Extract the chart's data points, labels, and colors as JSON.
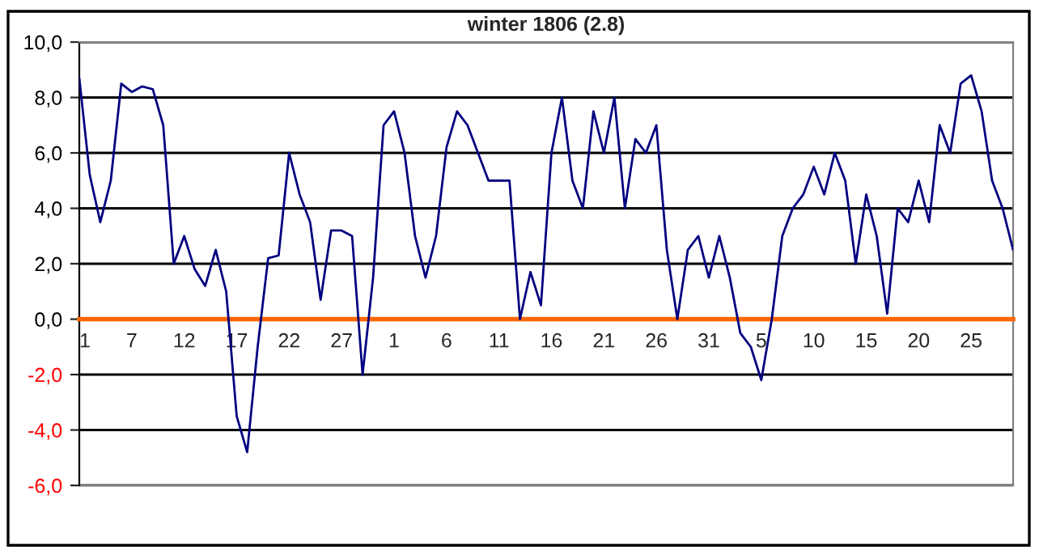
{
  "chart_data": {
    "type": "line",
    "title": "winter 1806 (2.8)",
    "categories": [
      "1",
      null,
      null,
      null,
      null,
      "7",
      null,
      null,
      null,
      null,
      "12",
      null,
      null,
      null,
      null,
      "17",
      null,
      null,
      null,
      null,
      "22",
      null,
      null,
      null,
      null,
      "27",
      null,
      null,
      null,
      null,
      "1",
      null,
      null,
      null,
      null,
      "6",
      null,
      null,
      null,
      null,
      "11",
      null,
      null,
      null,
      null,
      "16",
      null,
      null,
      null,
      null,
      "21",
      null,
      null,
      null,
      null,
      "26",
      null,
      null,
      null,
      null,
      "31",
      null,
      null,
      null,
      null,
      "5",
      null,
      null,
      null,
      null,
      "10",
      null,
      null,
      null,
      null,
      "15",
      null,
      null,
      null,
      null,
      "20",
      null,
      null,
      null,
      null,
      "25",
      null,
      null,
      null,
      null
    ],
    "series": [
      {
        "color": "#000080",
        "values": [
          8.7,
          5.2,
          3.5,
          5.0,
          8.5,
          8.2,
          8.4,
          8.3,
          7.0,
          2.0,
          3.0,
          1.8,
          1.2,
          2.5,
          1.0,
          -3.5,
          -4.8,
          -1.0,
          2.2,
          2.3,
          6.0,
          4.5,
          3.5,
          0.7,
          3.2,
          3.2,
          3.0,
          -2.0,
          1.5,
          7.0,
          7.5,
          6.0,
          3.0,
          1.5,
          3.0,
          6.2,
          7.5,
          7.0,
          6.0,
          5.0,
          5.0,
          5.0,
          0.0,
          1.7,
          0.5,
          6.0,
          8.0,
          5.0,
          4.0,
          7.5,
          6.0,
          8.0,
          4.0,
          6.5,
          6.0,
          7.0,
          2.5,
          0.0,
          2.5,
          3.0,
          1.5,
          3.0,
          1.5,
          -0.5,
          -1.0,
          -2.2,
          0.0,
          3.0,
          4.0,
          4.5,
          5.5,
          4.5,
          6.0,
          5.0,
          2.0,
          4.5,
          3.0,
          0.2,
          4.0,
          3.5,
          5.0,
          3.5,
          7.0,
          6.0,
          8.5,
          8.8,
          7.5,
          5.0,
          4.0,
          2.5
        ]
      }
    ],
    "ylim": [
      -6,
      10
    ],
    "yticks": [
      {
        "value": -6,
        "label": "-6,0"
      },
      {
        "value": -4,
        "label": "-4,0"
      },
      {
        "value": -2,
        "label": "-2,0"
      },
      {
        "value": 0,
        "label": "0,0"
      },
      {
        "value": 2,
        "label": "2,0"
      },
      {
        "value": 4,
        "label": "4,0"
      },
      {
        "value": 6,
        "label": "6,0"
      },
      {
        "value": 8,
        "label": "8,0"
      },
      {
        "value": 10,
        "label": "10,0"
      }
    ],
    "grid": "y",
    "legend": false,
    "marker": "none",
    "line_style": "solid"
  }
}
